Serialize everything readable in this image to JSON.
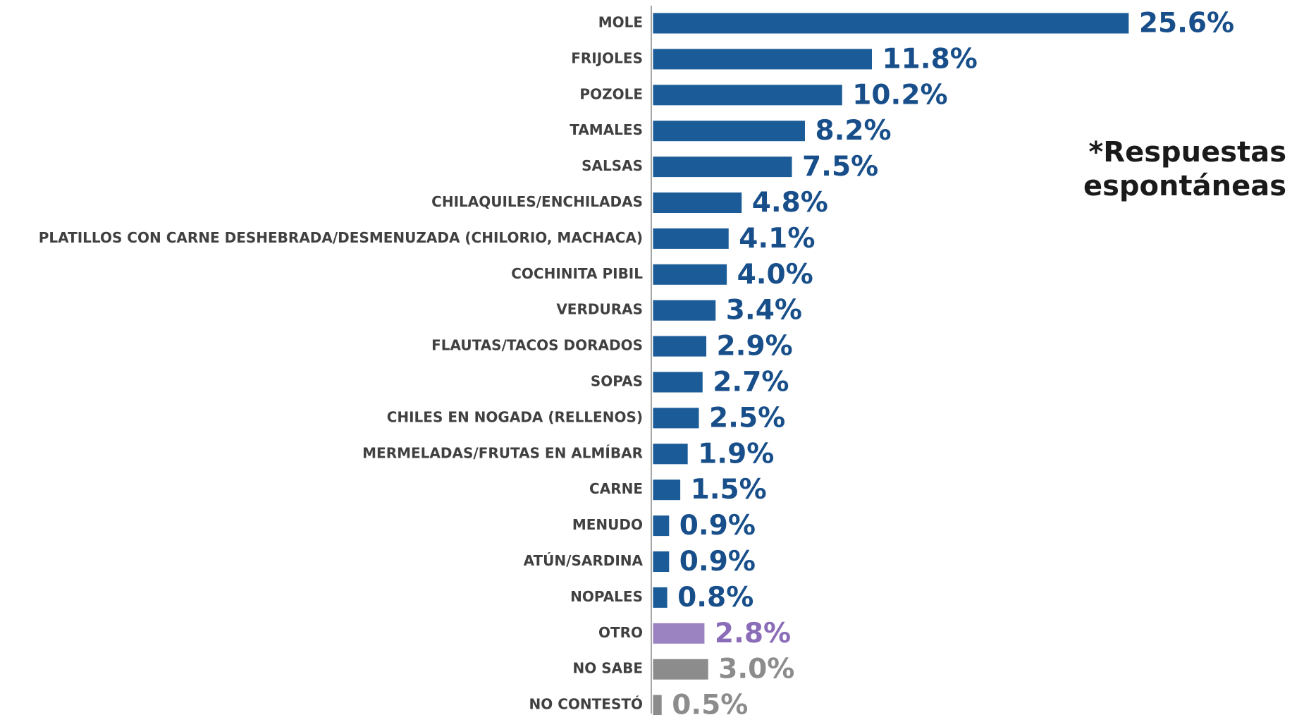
{
  "chart_data": {
    "type": "bar",
    "orientation": "horizontal",
    "annotation": "*Respuestas espontáneas",
    "categories": [
      "MOLE",
      "FRIJOLES",
      "POZOLE",
      "TAMALES",
      "SALSAS",
      "CHILAQUILES/ENCHILADAS",
      "PLATILLOS CON CARNE DESHEBRADA/DESMENUZADA (CHILORIO, MACHACA)",
      "COCHINITA PIBIL",
      "VERDURAS",
      "FLAUTAS/TACOS DORADOS",
      "SOPAS",
      "CHILES EN NOGADA (RELLENOS)",
      "MERMELADAS/FRUTAS EN ALMÍBAR",
      "CARNE",
      "MENUDO",
      "ATÚN/SARDINA",
      "NOPALES",
      "OTRO",
      "NO SABE",
      "NO CONTESTÓ"
    ],
    "values": [
      25.6,
      11.8,
      10.2,
      8.2,
      7.5,
      4.8,
      4.1,
      4.0,
      3.4,
      2.9,
      2.7,
      2.5,
      1.9,
      1.5,
      0.9,
      0.9,
      0.8,
      2.8,
      3.0,
      0.5
    ],
    "value_labels": [
      "25.6%",
      "11.8%",
      "10.2%",
      "8.2%",
      "7.5%",
      "4.8%",
      "4.1%",
      "4.0%",
      "3.4%",
      "2.9%",
      "2.7%",
      "2.5%",
      "1.9%",
      "1.5%",
      "0.9%",
      "0.9%",
      "0.8%",
      "2.8%",
      "3.0%",
      "0.5%"
    ],
    "colors": [
      "#1b5b97",
      "#1b5b97",
      "#1b5b97",
      "#1b5b97",
      "#1b5b97",
      "#1b5b97",
      "#1b5b97",
      "#1b5b97",
      "#1b5b97",
      "#1b5b97",
      "#1b5b97",
      "#1b5b97",
      "#1b5b97",
      "#1b5b97",
      "#1b5b97",
      "#1b5b97",
      "#1b5b97",
      "#9b82c1",
      "#8c8c8c",
      "#8c8c8c"
    ]
  }
}
